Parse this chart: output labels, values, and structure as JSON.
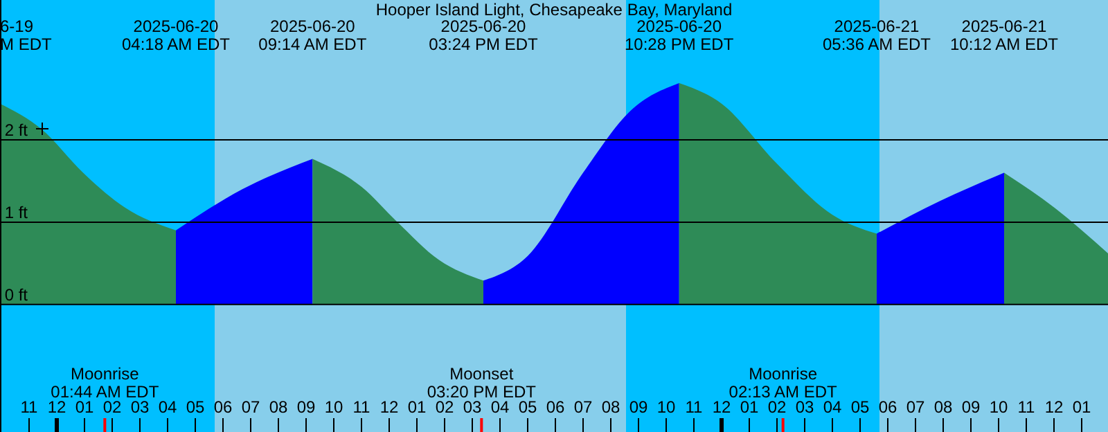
{
  "chart_data": {
    "type": "area",
    "title": "Hooper Island Light, Chesapeake Bay, Maryland",
    "xlim": [
      "2025-06-19T21:57",
      "2025-06-21T13:57"
    ],
    "ylim": [
      -1.55,
      3.7
    ],
    "yticks": [
      {
        "value": 0,
        "label": "0 ft"
      },
      {
        "value": 1,
        "label": "1 ft"
      },
      {
        "value": 2,
        "label": "2 ft"
      }
    ],
    "xticks": [
      {
        "value": "2025-06-19T23:00",
        "label": "11"
      },
      {
        "value": "2025-06-20T00:00",
        "label": "12"
      },
      {
        "value": "2025-06-20T01:00",
        "label": "01"
      },
      {
        "value": "2025-06-20T02:00",
        "label": "02"
      },
      {
        "value": "2025-06-20T03:00",
        "label": "03"
      },
      {
        "value": "2025-06-20T04:00",
        "label": "04"
      },
      {
        "value": "2025-06-20T05:00",
        "label": "05"
      },
      {
        "value": "2025-06-20T06:00",
        "label": "06"
      },
      {
        "value": "2025-06-20T07:00",
        "label": "07"
      },
      {
        "value": "2025-06-20T08:00",
        "label": "08"
      },
      {
        "value": "2025-06-20T09:00",
        "label": "09"
      },
      {
        "value": "2025-06-20T10:00",
        "label": "10"
      },
      {
        "value": "2025-06-20T11:00",
        "label": "11"
      },
      {
        "value": "2025-06-20T12:00",
        "label": "12"
      },
      {
        "value": "2025-06-20T13:00",
        "label": "01"
      },
      {
        "value": "2025-06-20T14:00",
        "label": "02"
      },
      {
        "value": "2025-06-20T15:00",
        "label": "03"
      },
      {
        "value": "2025-06-20T16:00",
        "label": "04"
      },
      {
        "value": "2025-06-20T17:00",
        "label": "05"
      },
      {
        "value": "2025-06-20T18:00",
        "label": "06"
      },
      {
        "value": "2025-06-20T19:00",
        "label": "07"
      },
      {
        "value": "2025-06-20T20:00",
        "label": "08"
      },
      {
        "value": "2025-06-20T21:00",
        "label": "09"
      },
      {
        "value": "2025-06-20T22:00",
        "label": "10"
      },
      {
        "value": "2025-06-20T23:00",
        "label": "11"
      },
      {
        "value": "2025-06-21T00:00",
        "label": "12"
      },
      {
        "value": "2025-06-21T01:00",
        "label": "01"
      },
      {
        "value": "2025-06-21T02:00",
        "label": "02"
      },
      {
        "value": "2025-06-21T03:00",
        "label": "03"
      },
      {
        "value": "2025-06-21T04:00",
        "label": "04"
      },
      {
        "value": "2025-06-21T05:00",
        "label": "05"
      },
      {
        "value": "2025-06-21T06:00",
        "label": "06"
      },
      {
        "value": "2025-06-21T07:00",
        "label": "07"
      },
      {
        "value": "2025-06-21T08:00",
        "label": "08"
      },
      {
        "value": "2025-06-21T09:00",
        "label": "09"
      },
      {
        "value": "2025-06-21T10:00",
        "label": "10"
      },
      {
        "value": "2025-06-21T11:00",
        "label": "11"
      },
      {
        "value": "2025-06-21T12:00",
        "label": "12"
      },
      {
        "value": "2025-06-21T13:00",
        "label": "01"
      }
    ],
    "grid": "y",
    "series": [
      {
        "color": "#2e8b57",
        "x": [
          "2025-06-19T21:57",
          "2025-06-19T23:27",
          "2025-06-20T00:57",
          "2025-06-20T02:27",
          "2025-06-20T04:18"
        ],
        "values": [
          2.44,
          2.13,
          1.6,
          1.18,
          0.9
        ]
      },
      {
        "color": "#0000ff",
        "x": [
          "2025-06-20T04:18",
          "2025-06-20T06:42",
          "2025-06-20T09:14"
        ],
        "values": [
          0.9,
          1.4,
          1.77
        ]
      },
      {
        "color": "#2e8b57",
        "x": [
          "2025-06-20T09:14",
          "2025-06-20T11:00",
          "2025-06-20T12:18",
          "2025-06-20T13:48",
          "2025-06-20T15:24"
        ],
        "values": [
          1.77,
          1.43,
          1.0,
          0.54,
          0.29
        ]
      },
      {
        "color": "#0000ff",
        "x": [
          "2025-06-20T15:24",
          "2025-06-20T17:00",
          "2025-06-20T19:00",
          "2025-06-20T20:42",
          "2025-06-20T22:28"
        ],
        "values": [
          0.29,
          0.59,
          1.6,
          2.35,
          2.69
        ]
      },
      {
        "color": "#2e8b57",
        "x": [
          "2025-06-20T22:28",
          "2025-06-21T00:00",
          "2025-06-21T02:00",
          "2025-06-21T04:00",
          "2025-06-21T05:36"
        ],
        "values": [
          2.69,
          2.44,
          1.71,
          1.09,
          0.86
        ]
      },
      {
        "color": "#0000ff",
        "x": [
          "2025-06-21T05:36",
          "2025-06-21T07:54",
          "2025-06-21T10:12"
        ],
        "values": [
          0.86,
          1.26,
          1.6
        ]
      },
      {
        "color": "#2e8b57",
        "x": [
          "2025-06-21T10:12",
          "2025-06-21T12:00",
          "2025-06-21T13:57"
        ],
        "values": [
          1.6,
          1.18,
          0.62
        ]
      }
    ],
    "bands": [
      {
        "axis": "x",
        "from": "2025-06-19T21:57",
        "to": "2025-06-20T05:42",
        "color": "#00bfff"
      },
      {
        "axis": "x",
        "from": "2025-06-20T05:42",
        "to": "2025-06-20T20:33",
        "color": "#87ceeb"
      },
      {
        "axis": "x",
        "from": "2025-06-20T20:33",
        "to": "2025-06-21T05:42",
        "color": "#00bfff"
      },
      {
        "axis": "x",
        "from": "2025-06-21T05:42",
        "to": "2025-06-21T13:57",
        "color": "#87ceeb"
      }
    ],
    "ref_lines": [
      {
        "axis": "x",
        "value": "2025-06-20T01:44",
        "label": "Moonrise\n01:44 AM EDT",
        "color": "#ff0000"
      },
      {
        "axis": "x",
        "value": "2025-06-20T15:20",
        "label": "Moonset\n03:20 PM EDT",
        "color": "#ff0000"
      },
      {
        "axis": "x",
        "value": "2025-06-21T02:13",
        "label": "Moonrise\n02:13 AM EDT",
        "color": "#ff0000"
      }
    ],
    "annotations": [
      "6-19\nM EDT",
      "2025-06-20\n04:18 AM EDT",
      "2025-06-20\n09:14 AM EDT",
      "2025-06-20\n03:24 PM EDT",
      "2025-06-20\n10:28 PM EDT",
      "2025-06-21\n05:36 AM EDT",
      "2025-06-21\n10:12 AM EDT"
    ]
  }
}
